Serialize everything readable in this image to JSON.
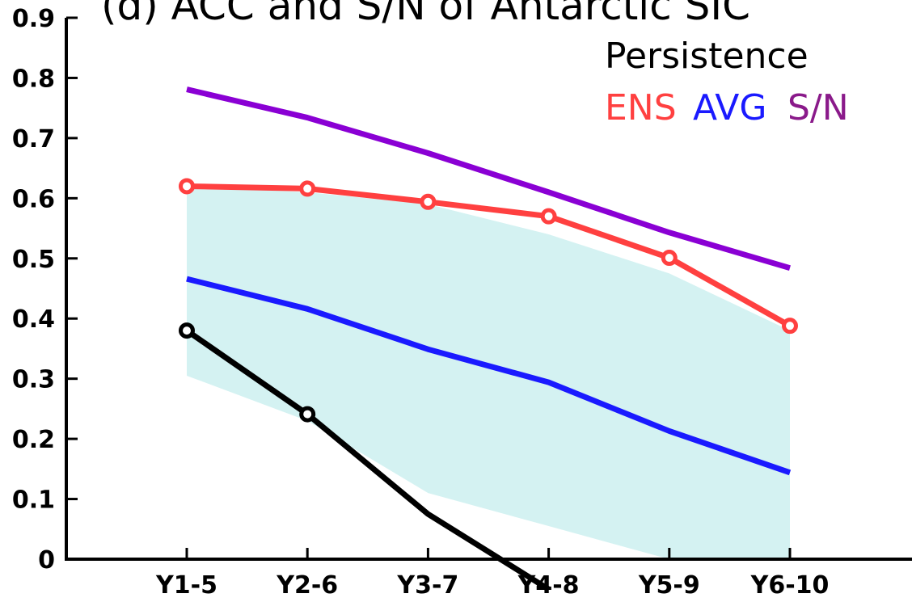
{
  "chart_data": {
    "type": "line",
    "title": "(d) ACC and S/N of Antarctic SIC",
    "categories": [
      "Y1-5",
      "Y2-6",
      "Y3-7",
      "Y4-8",
      "Y5-9",
      "Y6-10"
    ],
    "ylim": [
      0,
      0.9
    ],
    "yticks": [
      "0",
      "0.1",
      "0.2",
      "0.3",
      "0.4",
      "0.5",
      "0.6",
      "0.7",
      "0.8",
      "0.9"
    ],
    "grid": false,
    "legend": {
      "placement": "top-right",
      "heading": "Persistence",
      "entries": [
        {
          "label": "ENS",
          "color": "#ff4040"
        },
        {
          "label": "AVG",
          "color": "#1a1aff"
        },
        {
          "label": "S/N",
          "color": "#8a1a8a"
        }
      ]
    },
    "band": {
      "color": "#d4f2f2",
      "upper": [
        0.62,
        0.61,
        0.59,
        0.54,
        0.475,
        0.38
      ],
      "lower": [
        0.305,
        0.23,
        0.11,
        0.055,
        0.0,
        0.0
      ]
    },
    "series": [
      {
        "name": "ENS",
        "color": "#ff4040",
        "markers": true,
        "values": [
          0.62,
          0.616,
          0.594,
          0.57,
          0.501,
          0.388
        ]
      },
      {
        "name": "AVG",
        "color": "#1a1aff",
        "markers": false,
        "values": [
          0.466,
          0.416,
          0.349,
          0.294,
          0.213,
          0.144
        ]
      },
      {
        "name": "S/N",
        "color": "#8a00d4",
        "markers": false,
        "values": [
          0.781,
          0.734,
          0.675,
          0.61,
          0.543,
          0.484
        ]
      },
      {
        "name": "Persistence",
        "color": "#000000",
        "markers": true,
        "marker_count": 2,
        "values": [
          0.38,
          0.241,
          0.075,
          -0.05,
          null,
          null
        ]
      }
    ]
  }
}
